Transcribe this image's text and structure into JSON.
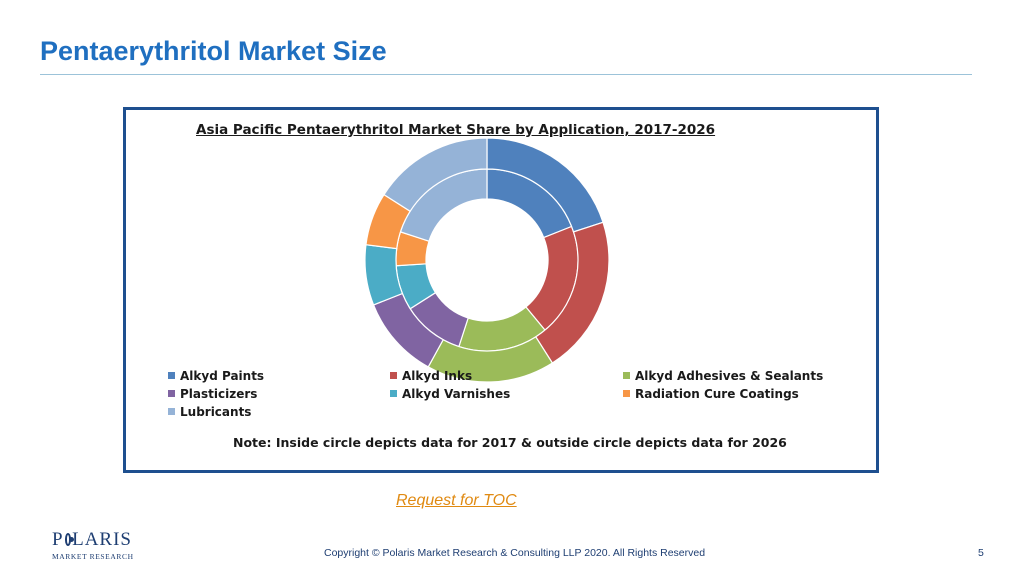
{
  "slide": {
    "title": "Pentaerythritol Market Size",
    "toc_link": "Request for TOC",
    "copyright": "Copyright © Polaris Market Research & Consulting LLP 2020. All Rights Reserved",
    "page_number": "5",
    "logo": {
      "main_left": "P",
      "main_right": "LARIS",
      "sub": "MARKET RESEARCH"
    }
  },
  "colors": {
    "title": "#1f6fc0",
    "frame": "#1e4f8f",
    "link": "#e08a12"
  },
  "chart_data": {
    "type": "donut",
    "title": "Asia Pacific Pentaerythritol Market Share by Application, 2017-2026",
    "note": "Note: Inside circle depicts data for 2017 & outside circle depicts data for 2026",
    "categories": [
      "Alkyd Paints",
      "Alkyd Inks",
      "Alkyd Adhesives & Sealants",
      "Plasticizers",
      "Alkyd Varnishes",
      "Radiation Cure Coatings",
      "Lubricants"
    ],
    "colors": [
      "#4f81bd",
      "#c0504d",
      "#9bbb59",
      "#8064a2",
      "#4bacc6",
      "#f79646",
      "#95b3d7"
    ],
    "series": [
      {
        "name": "2017",
        "ring": "inner",
        "values": [
          19,
          20,
          16,
          11,
          8,
          6,
          20
        ]
      },
      {
        "name": "2026",
        "ring": "outer",
        "values": [
          20,
          21,
          17,
          11,
          8,
          7,
          16
        ]
      }
    ],
    "legend_position": "bottom"
  }
}
